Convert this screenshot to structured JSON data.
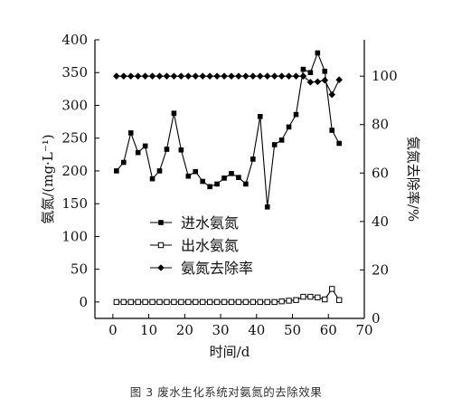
{
  "caption": "图 3 废水生化系统对氨氮的去除效果",
  "chart_data": {
    "type": "line",
    "xlabel": "时间/d",
    "ylabel_left": "氨氮/(mg·L⁻¹)",
    "ylabel_right": "氨氮去除率/%",
    "xlim": [
      -5,
      70
    ],
    "xticks": [
      0,
      10,
      20,
      30,
      40,
      50,
      60,
      70
    ],
    "ylim_left": [
      -25,
      400
    ],
    "yticks_left": [
      0,
      50,
      100,
      150,
      200,
      250,
      300,
      350,
      400
    ],
    "ylim_right": [
      0,
      115
    ],
    "yticks_right": [
      0,
      20,
      40,
      60,
      80,
      100
    ],
    "legend_position": "center-left",
    "grid": false,
    "series": [
      {
        "name": "进水氨氮",
        "axis": "left",
        "marker": "filled-square",
        "x": [
          1,
          3,
          5,
          7,
          9,
          11,
          13,
          15,
          17,
          19,
          21,
          23,
          25,
          27,
          29,
          31,
          33,
          35,
          37,
          39,
          41,
          43,
          45,
          47,
          49,
          51,
          53,
          55,
          57,
          59,
          61,
          63
        ],
        "y": [
          200,
          213,
          258,
          228,
          238,
          188,
          200,
          233,
          288,
          232,
          192,
          199,
          184,
          176,
          180,
          189,
          196,
          190,
          180,
          218,
          283,
          145,
          240,
          247,
          267,
          286,
          355,
          350,
          380,
          352,
          262,
          242
        ]
      },
      {
        "name": "出水氨氮",
        "axis": "left",
        "marker": "open-square",
        "x": [
          1,
          3,
          5,
          7,
          9,
          11,
          13,
          15,
          17,
          19,
          21,
          23,
          25,
          27,
          29,
          31,
          33,
          35,
          37,
          39,
          41,
          43,
          45,
          47,
          49,
          51,
          53,
          55,
          57,
          59,
          61,
          63
        ],
        "y": [
          0,
          0,
          0,
          0,
          0,
          0,
          0,
          0,
          0,
          0,
          0,
          0,
          0,
          0,
          0,
          0,
          0,
          0,
          0,
          0,
          0,
          0,
          0,
          1,
          2,
          3,
          8,
          8,
          7,
          4,
          20,
          3
        ]
      },
      {
        "name": "氨氮去除率",
        "axis": "right",
        "marker": "filled-diamond",
        "x": [
          1,
          3,
          5,
          7,
          9,
          11,
          13,
          15,
          17,
          19,
          21,
          23,
          25,
          27,
          29,
          31,
          33,
          35,
          37,
          39,
          41,
          43,
          45,
          47,
          49,
          51,
          53,
          55,
          57,
          59,
          61,
          63
        ],
        "y": [
          100,
          100,
          100,
          100,
          100,
          100,
          100,
          100,
          100,
          100,
          100,
          100,
          100,
          100,
          100,
          100,
          100,
          100,
          100,
          100,
          100,
          100,
          100,
          100,
          100,
          100,
          100,
          97.5,
          97.7,
          98.3,
          92.4,
          98.5
        ]
      }
    ]
  }
}
